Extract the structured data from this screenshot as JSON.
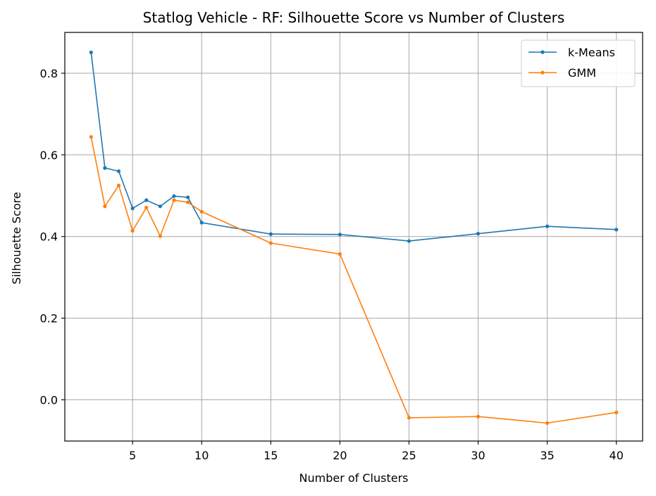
{
  "chart_data": {
    "type": "line",
    "title": "Statlog Vehicle - RF: Silhouette Score vs Number of Clusters",
    "xlabel": "Number of Clusters",
    "ylabel": "Silhouette Score",
    "xlim": [
      0.1,
      41.9
    ],
    "ylim": [
      -0.101,
      0.9
    ],
    "xticks": [
      5,
      10,
      15,
      20,
      25,
      30,
      35,
      40
    ],
    "yticks": [
      0.0,
      0.2,
      0.4,
      0.6,
      0.8
    ],
    "grid": true,
    "legend_position": "top-right",
    "series": [
      {
        "name": "k-Means",
        "color": "#1f77b4",
        "x": [
          2,
          3,
          4,
          5,
          6,
          7,
          8,
          9,
          10,
          15,
          20,
          25,
          30,
          35,
          40
        ],
        "y": [
          0.851,
          0.568,
          0.56,
          0.469,
          0.489,
          0.474,
          0.499,
          0.496,
          0.434,
          0.406,
          0.405,
          0.389,
          0.407,
          0.425,
          0.417
        ]
      },
      {
        "name": "GMM",
        "color": "#ff7f0e",
        "x": [
          2,
          3,
          4,
          5,
          6,
          7,
          8,
          9,
          10,
          15,
          20,
          25,
          30,
          35,
          40
        ],
        "y": [
          0.644,
          0.474,
          0.525,
          0.414,
          0.471,
          0.401,
          0.489,
          0.484,
          0.461,
          0.384,
          0.357,
          -0.044,
          -0.041,
          -0.057,
          -0.031
        ]
      }
    ]
  }
}
